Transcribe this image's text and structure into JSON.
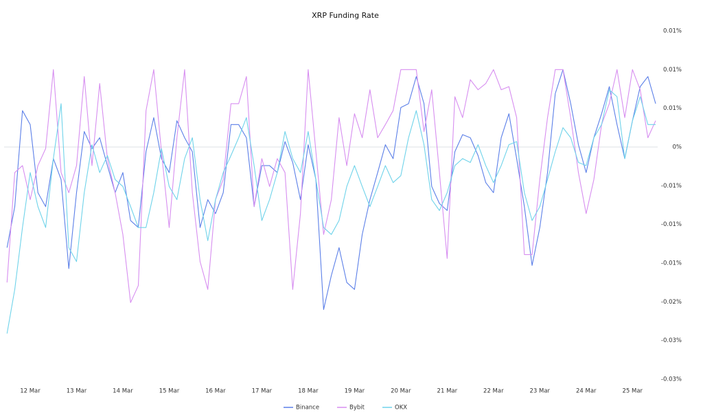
{
  "chart_data": {
    "type": "line",
    "title": "XRP Funding Rate",
    "categories": [
      null,
      null,
      null,
      "12 Mar",
      null,
      null,
      null,
      null,
      null,
      "13 Mar",
      null,
      null,
      null,
      null,
      null,
      "14 Mar",
      null,
      null,
      null,
      null,
      null,
      "15 Mar",
      null,
      null,
      null,
      null,
      null,
      "16 Mar",
      null,
      null,
      null,
      null,
      null,
      "17 Mar",
      null,
      null,
      null,
      null,
      null,
      "18 Mar",
      null,
      null,
      null,
      null,
      null,
      "19 Mar",
      null,
      null,
      null,
      null,
      null,
      "20 Mar",
      null,
      null,
      null,
      null,
      null,
      "21 Mar",
      null,
      null,
      null,
      null,
      null,
      "22 Mar",
      null,
      null,
      null,
      null,
      null,
      "23 Mar",
      null,
      null,
      null,
      null,
      null,
      "24 Mar",
      null,
      null,
      null,
      null,
      null,
      "25 Mar",
      null,
      null,
      null
    ],
    "series": [
      {
        "name": "Binance",
        "color": "#5b7fe8",
        "values": [
          -0.013,
          -0.0077,
          0.0047,
          0.0029,
          -0.0059,
          -0.0077,
          -0.0015,
          -0.0042,
          -0.0157,
          -0.0059,
          0.002,
          -0.0002,
          0.0012,
          -0.0024,
          -0.0059,
          -0.0033,
          -0.0095,
          -0.0104,
          -0.0006,
          0.0038,
          -0.0015,
          -0.0033,
          0.0034,
          0.0012,
          -0.0006,
          -0.0104,
          -0.0068,
          -0.0086,
          -0.0059,
          0.0029,
          0.0029,
          0.0012,
          -0.0077,
          -0.0024,
          -0.0024,
          -0.0033,
          0.0007,
          -0.002,
          -0.0068,
          0.0003,
          -0.0042,
          -0.021,
          -0.0166,
          -0.013,
          -0.0175,
          -0.0184,
          -0.0113,
          -0.0068,
          -0.0033,
          0.0003,
          -0.0015,
          0.0051,
          0.0056,
          0.0091,
          0.0056,
          -0.0051,
          -0.0073,
          -0.0082,
          -0.0006,
          0.0016,
          0.0012,
          -0.0011,
          -0.0046,
          -0.0059,
          0.0012,
          0.0043,
          -0.0015,
          -0.0077,
          -0.0153,
          -0.0104,
          -0.0033,
          0.0069,
          0.01,
          0.0056,
          0.0003,
          -0.0033,
          0.0012,
          0.0043,
          0.0078,
          0.0029,
          -0.0015,
          0.0034,
          0.0078,
          0.0091,
          0.0056
        ]
      },
      {
        "name": "Bybit",
        "color": "#d78ef0",
        "values": [
          -0.0175,
          -0.0033,
          -0.0024,
          -0.0068,
          -0.0024,
          -0.0002,
          0.01,
          -0.0033,
          -0.0059,
          -0.0024,
          0.0091,
          -0.0024,
          0.0082,
          -0.0015,
          -0.0059,
          -0.0113,
          -0.0201,
          -0.0179,
          0.0047,
          0.01,
          -0.0006,
          -0.0104,
          0.0012,
          0.01,
          -0.0059,
          -0.0148,
          -0.0184,
          -0.0068,
          -0.0042,
          0.0056,
          0.0056,
          0.0091,
          -0.0077,
          -0.0015,
          -0.0051,
          -0.0015,
          -0.0033,
          -0.0184,
          -0.0086,
          0.01,
          -0.0006,
          -0.0113,
          -0.0068,
          0.0038,
          -0.0024,
          0.0043,
          0.0012,
          0.0074,
          0.0012,
          0.0029,
          0.0047,
          0.01,
          0.01,
          0.01,
          0.002,
          0.0074,
          -0.0033,
          -0.0144,
          0.0065,
          0.0038,
          0.0087,
          0.0074,
          0.0082,
          0.01,
          0.0074,
          0.0078,
          0.0038,
          -0.0139,
          -0.0139,
          -0.0042,
          0.0038,
          0.01,
          0.01,
          0.0038,
          -0.0033,
          -0.0086,
          -0.0042,
          0.0029,
          0.0056,
          0.01,
          0.0038,
          0.01,
          0.0074,
          0.0012,
          0.0034
        ]
      },
      {
        "name": "OKX",
        "color": "#6fd3ea",
        "values": [
          -0.0241,
          -0.0184,
          -0.0104,
          -0.0033,
          -0.0077,
          -0.0104,
          -0.0015,
          0.0056,
          -0.013,
          -0.0148,
          -0.0059,
          0.0003,
          -0.0033,
          -0.0011,
          -0.0042,
          -0.0051,
          -0.0077,
          -0.0104,
          -0.0104,
          -0.0059,
          -0.0002,
          -0.0051,
          -0.0068,
          -0.0015,
          0.0012,
          -0.0068,
          -0.0121,
          -0.0068,
          -0.0033,
          -0.0011,
          0.0012,
          0.0038,
          -0.0024,
          -0.0095,
          -0.0068,
          -0.0033,
          0.002,
          -0.0015,
          -0.0033,
          0.002,
          -0.0042,
          -0.0104,
          -0.0113,
          -0.0095,
          -0.0051,
          -0.0024,
          -0.0051,
          -0.0077,
          -0.0051,
          -0.0024,
          -0.0046,
          -0.0037,
          0.0012,
          0.0047,
          0.0003,
          -0.0068,
          -0.0082,
          -0.0059,
          -0.0024,
          -0.0015,
          -0.002,
          0.0003,
          -0.0024,
          -0.0046,
          -0.0024,
          0.0003,
          0.0007,
          -0.0059,
          -0.0095,
          -0.0077,
          -0.0042,
          -0.0006,
          0.0025,
          0.0012,
          -0.002,
          -0.0024,
          0.0012,
          0.0029,
          0.0074,
          0.0065,
          -0.0015,
          0.0034,
          0.0065,
          0.0029,
          0.0029
        ]
      }
    ],
    "ylim": [
      -0.03,
      0.015
    ],
    "yticks": [
      {
        "value": 0.015,
        "label": "0.01%"
      },
      {
        "value": 0.01,
        "label": "0.01%"
      },
      {
        "value": 0.005,
        "label": "0.01%"
      },
      {
        "value": 0,
        "label": "0%"
      },
      {
        "value": -0.005,
        "label": "-0.01%"
      },
      {
        "value": -0.01,
        "label": "-0.01%"
      },
      {
        "value": -0.015,
        "label": "-0.01%"
      },
      {
        "value": -0.02,
        "label": "-0.02%"
      },
      {
        "value": -0.025,
        "label": "-0.03%"
      },
      {
        "value": -0.03,
        "label": "-0.03%"
      }
    ],
    "legend": "bottom"
  }
}
